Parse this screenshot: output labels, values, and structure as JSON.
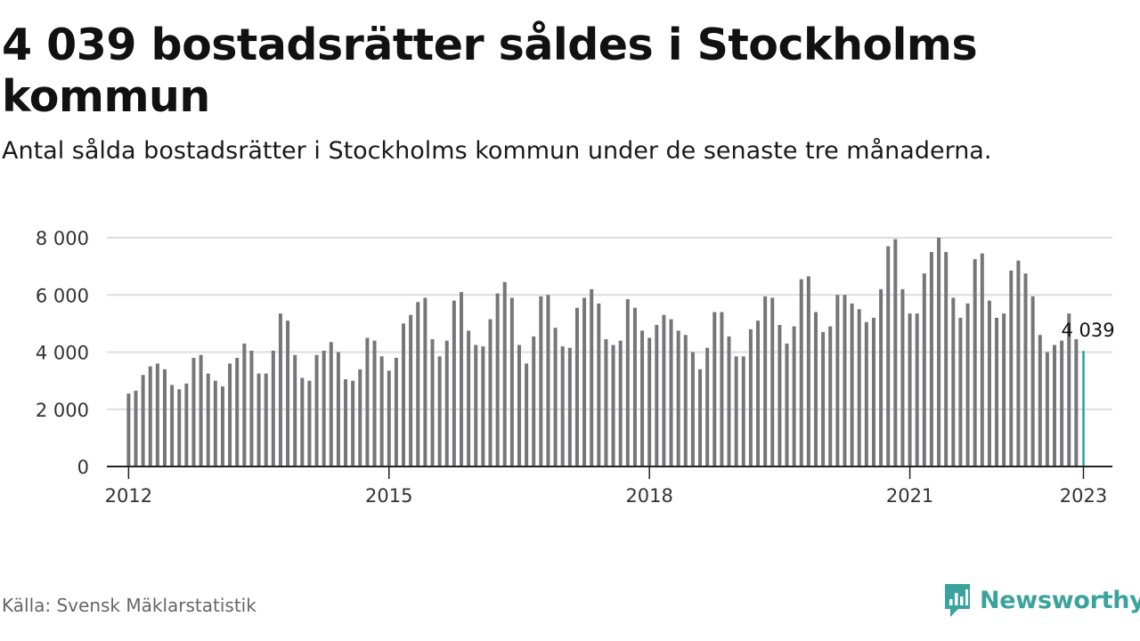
{
  "title": "4 039 bostadsrätter såldes i Stockholms kommun",
  "subtitle": "Antal sålda bostadsrätter i Stockholms kommun under de senaste tre månaderna.",
  "source": "Källa: Svensk Mäklarstatistik",
  "brand": {
    "name": "Newsworthy",
    "icon": "newsworthy-logo-icon"
  },
  "colors": {
    "bar": "#76767a",
    "highlight": "#2aa198",
    "grid": "#dddddd",
    "axis": "#222222",
    "brand": "#3aa39b"
  },
  "chart_data": {
    "type": "bar",
    "title": "4 039 bostadsrätter såldes i Stockholms kommun",
    "xlabel": "",
    "ylabel": "",
    "ylim": [
      0,
      8000
    ],
    "xlim": [
      "2011-10",
      "2023-05"
    ],
    "y_ticks": [
      {
        "value": 0,
        "label": "0"
      },
      {
        "value": 2000,
        "label": "2 000"
      },
      {
        "value": 4000,
        "label": "4 000"
      },
      {
        "value": 6000,
        "label": "6 000"
      },
      {
        "value": 8000,
        "label": "8 000"
      }
    ],
    "x_ticks": [
      {
        "date": "2012-01",
        "label": "2012"
      },
      {
        "date": "2015-01",
        "label": "2015"
      },
      {
        "date": "2018-01",
        "label": "2018"
      },
      {
        "date": "2021-01",
        "label": "2021"
      },
      {
        "date": "2023-01",
        "label": "2023"
      }
    ],
    "grid": true,
    "legend": "none",
    "annotation": {
      "date": "2023-01",
      "label": "4 039"
    },
    "series": [
      {
        "dates": [
          "2012-01",
          "2012-02",
          "2012-03",
          "2012-04",
          "2012-05",
          "2012-06",
          "2012-07",
          "2012-08",
          "2012-09",
          "2012-10",
          "2012-11",
          "2012-12",
          "2013-01",
          "2013-02",
          "2013-03",
          "2013-04",
          "2013-05",
          "2013-06",
          "2013-07",
          "2013-08",
          "2013-09",
          "2013-10",
          "2013-11",
          "2013-12",
          "2014-01",
          "2014-02",
          "2014-03",
          "2014-04",
          "2014-05",
          "2014-06",
          "2014-07",
          "2014-08",
          "2014-09",
          "2014-10",
          "2014-11",
          "2014-12",
          "2015-01",
          "2015-02",
          "2015-03",
          "2015-04",
          "2015-05",
          "2015-06",
          "2015-07",
          "2015-08",
          "2015-09",
          "2015-10",
          "2015-11",
          "2015-12",
          "2016-01",
          "2016-02",
          "2016-03",
          "2016-04",
          "2016-05",
          "2016-06",
          "2016-07",
          "2016-08",
          "2016-09",
          "2016-10",
          "2016-11",
          "2016-12",
          "2017-01",
          "2017-02",
          "2017-03",
          "2017-04",
          "2017-05",
          "2017-06",
          "2017-07",
          "2017-08",
          "2017-09",
          "2017-10",
          "2017-11",
          "2017-12",
          "2018-01",
          "2018-02",
          "2018-03",
          "2018-04",
          "2018-05",
          "2018-06",
          "2018-07",
          "2018-08",
          "2018-09",
          "2018-10",
          "2018-11",
          "2018-12",
          "2019-01",
          "2019-02",
          "2019-03",
          "2019-04",
          "2019-05",
          "2019-06",
          "2019-07",
          "2019-08",
          "2019-09",
          "2019-10",
          "2019-11",
          "2019-12",
          "2020-01",
          "2020-02",
          "2020-03",
          "2020-04",
          "2020-05",
          "2020-06",
          "2020-07",
          "2020-08",
          "2020-09",
          "2020-10",
          "2020-11",
          "2020-12",
          "2021-01",
          "2021-02",
          "2021-03",
          "2021-04",
          "2021-05",
          "2021-06",
          "2021-07",
          "2021-08",
          "2021-09",
          "2021-10",
          "2021-11",
          "2021-12",
          "2022-01",
          "2022-02",
          "2022-03",
          "2022-04",
          "2022-05",
          "2022-06",
          "2022-07",
          "2022-08",
          "2022-09",
          "2022-10",
          "2022-11",
          "2022-12",
          "2023-01"
        ],
        "values": [
          2550,
          2650,
          3200,
          3500,
          3600,
          3400,
          2850,
          2700,
          2900,
          3800,
          3900,
          3250,
          3000,
          2800,
          3600,
          3800,
          4300,
          4050,
          3250,
          3250,
          4050,
          5350,
          5100,
          3900,
          3100,
          3000,
          3900,
          4050,
          4350,
          4000,
          3050,
          3000,
          3400,
          4500,
          4400,
          3850,
          3350,
          3800,
          5000,
          5300,
          5750,
          5900,
          4450,
          3850,
          4400,
          5800,
          6100,
          4750,
          4250,
          4200,
          5150,
          6050,
          6450,
          5900,
          4250,
          3600,
          4550,
          5950,
          6000,
          4850,
          4200,
          4150,
          5550,
          5900,
          6200,
          5700,
          4450,
          4250,
          4400,
          5850,
          5550,
          4750,
          4500,
          4950,
          5300,
          5150,
          4750,
          4600,
          4000,
          3400,
          4150,
          5400,
          5400,
          4550,
          3850,
          3850,
          4800,
          5100,
          5950,
          5900,
          4950,
          4300,
          4900,
          6550,
          6650,
          5400,
          4700,
          4900,
          6000,
          6000,
          5700,
          5500,
          5050,
          5200,
          6200,
          7700,
          7950,
          6200,
          5350,
          5350,
          6750,
          7500,
          8000,
          7500,
          5900,
          5200,
          5700,
          7250,
          7450,
          5800,
          5200,
          5350,
          6850,
          7200,
          6750,
          5950,
          4600,
          4000,
          4250,
          4400,
          5350,
          4450,
          4039
        ]
      }
    ]
  }
}
